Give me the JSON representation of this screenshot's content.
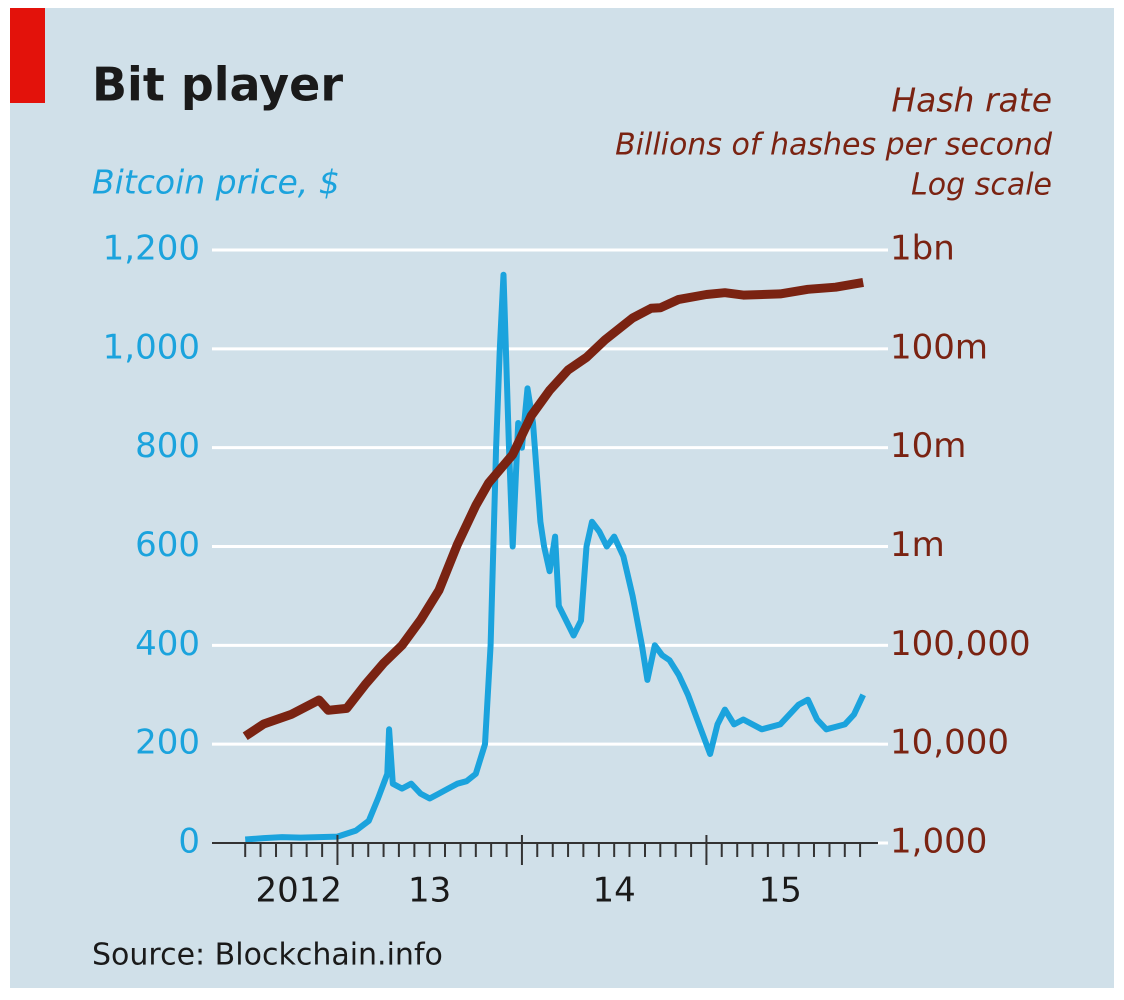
{
  "chart_data": {
    "type": "line",
    "title": "Bit player",
    "source": "Source: Blockchain.info",
    "xlim": [
      2012.32,
      2015.93
    ],
    "xticks": [
      2013,
      2014,
      2015
    ],
    "xminorticks": [
      2012.5,
      2012.583,
      2012.667,
      2012.75,
      2012.833,
      2012.917,
      2013.083,
      2013.167,
      2013.25,
      2013.333,
      2013.417,
      2013.5,
      2013.583,
      2013.667,
      2013.75,
      2013.833,
      2013.917,
      2014.083,
      2014.167,
      2014.25,
      2014.333,
      2014.417,
      2014.5,
      2014.583,
      2014.667,
      2014.75,
      2014.833,
      2014.917,
      2015.083,
      2015.167,
      2015.25,
      2015.333,
      2015.417,
      2015.5,
      2015.583,
      2015.667,
      2015.75,
      2015.833
    ],
    "xticklabels": [
      {
        "value": 2012.79,
        "label": "2012"
      },
      {
        "value": 2013.5,
        "label": "13"
      },
      {
        "value": 2014.5,
        "label": "14"
      },
      {
        "value": 2015.4,
        "label": "15"
      }
    ],
    "ylim": [
      0,
      1200
    ],
    "yticks": [
      0,
      200,
      400,
      600,
      800,
      {
        "value": 1000,
        "label": "1,000"
      },
      {
        "value": 1200,
        "label": "1,200"
      }
    ],
    "y2lim": [
      1000,
      1000000000
    ],
    "y2log": true,
    "y2ticks": [
      {
        "value": 1000,
        "label": "1,000"
      },
      {
        "value": 10000,
        "label": "10,000"
      },
      {
        "value": 100000,
        "label": "100,000"
      },
      {
        "value": 1000000,
        "label": "1m"
      },
      {
        "value": 10000000,
        "label": "10m"
      },
      {
        "value": 100000000,
        "label": "100m"
      },
      {
        "value": 1000000000,
        "label": "1bn"
      }
    ],
    "y2_label_lines": [
      "Billions of hashes per second",
      "Log scale"
    ],
    "grid": true,
    "series": [
      {
        "name": "Bitcoin price, $",
        "color": "#1ba3dd",
        "axis": "y",
        "x": [
          2012.5,
          2012.6,
          2012.7,
          2012.8,
          2012.9,
          2013.0,
          2013.1,
          2013.17,
          2013.22,
          2013.27,
          2013.28,
          2013.3,
          2013.35,
          2013.4,
          2013.45,
          2013.5,
          2013.55,
          2013.6,
          2013.65,
          2013.7,
          2013.75,
          2013.8,
          2013.83,
          2013.86,
          2013.88,
          2013.9,
          2013.93,
          2013.95,
          2013.98,
          2014.0,
          2014.03,
          2014.06,
          2014.1,
          2014.12,
          2014.15,
          2014.18,
          2014.2,
          2014.24,
          2014.28,
          2014.32,
          2014.35,
          2014.38,
          2014.42,
          2014.46,
          2014.5,
          2014.55,
          2014.6,
          2014.65,
          2014.68,
          2014.72,
          2014.76,
          2014.8,
          2014.85,
          2014.9,
          2014.95,
          2015.02,
          2015.06,
          2015.1,
          2015.15,
          2015.2,
          2015.3,
          2015.4,
          2015.5,
          2015.55,
          2015.6,
          2015.65,
          2015.7,
          2015.75,
          2015.8,
          2015.85
        ],
        "values": [
          7,
          10,
          12,
          11,
          12,
          13,
          25,
          45,
          90,
          140,
          230,
          120,
          110,
          120,
          100,
          90,
          100,
          110,
          120,
          125,
          140,
          200,
          400,
          800,
          1000,
          1150,
          800,
          600,
          850,
          800,
          920,
          850,
          650,
          600,
          550,
          620,
          480,
          450,
          420,
          450,
          600,
          650,
          630,
          600,
          620,
          580,
          500,
          400,
          330,
          400,
          380,
          370,
          340,
          300,
          250,
          180,
          240,
          270,
          240,
          250,
          230,
          240,
          280,
          290,
          250,
          230,
          235,
          240,
          260,
          300
        ]
      },
      {
        "name": "Hash rate",
        "color": "#7a2312",
        "axis": "y2",
        "x": [
          2012.5,
          2012.6,
          2012.75,
          2012.9,
          2012.95,
          2013.05,
          2013.15,
          2013.25,
          2013.35,
          2013.45,
          2013.55,
          2013.65,
          2013.75,
          2013.82,
          2013.95,
          2014.05,
          2014.15,
          2014.25,
          2014.35,
          2014.45,
          2014.6,
          2014.7,
          2014.75,
          2014.85,
          2015.0,
          2015.1,
          2015.2,
          2015.4,
          2015.55,
          2015.7,
          2015.85
        ],
        "values": [
          12000,
          16000,
          20000,
          28000,
          22000,
          23000,
          40000,
          66000,
          100000,
          180000,
          360000,
          1050000,
          2600000,
          4400000,
          8500000,
          21000000,
          38000000,
          61000000,
          82000000,
          123000000,
          205000000,
          257000000,
          260000000,
          316000000,
          355000000,
          370000000,
          350000000,
          360000000,
          400000000,
          420000000,
          470000000
        ]
      }
    ]
  }
}
